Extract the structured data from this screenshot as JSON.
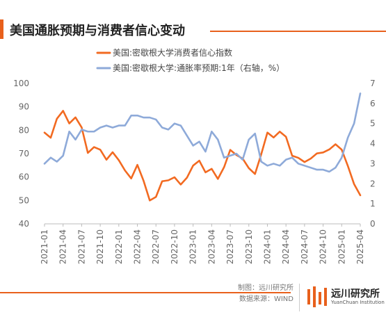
{
  "header": {
    "title": "美国通胀预期与消费者信心变动"
  },
  "footer": {
    "source_line1": "制图：远川研究所",
    "source_line2": "数据来源：WIND",
    "logo_cn": "远川研究所",
    "logo_en": "YuanChuan Institution"
  },
  "colors": {
    "accent": "#e8601c",
    "consumer_sentiment": "#f26a21",
    "inflation_expectation": "#8eaad9"
  },
  "chart_data": {
    "type": "line",
    "title": "美国通胀预期与消费者信心变动",
    "x_tick_labels": [
      "2021-01",
      "2021-04",
      "2021-07",
      "2021-10",
      "2022-01",
      "2022-04",
      "2022-07",
      "2022-10",
      "2023-01",
      "2023-04",
      "2023-07",
      "2023-10",
      "2024-01",
      "2024-04",
      "2024-07",
      "2024-10",
      "2025-01",
      "2025-04"
    ],
    "x": [
      "2021-01",
      "2021-02",
      "2021-03",
      "2021-04",
      "2021-05",
      "2021-06",
      "2021-07",
      "2021-08",
      "2021-09",
      "2021-10",
      "2021-11",
      "2021-12",
      "2022-01",
      "2022-02",
      "2022-03",
      "2022-04",
      "2022-05",
      "2022-06",
      "2022-07",
      "2022-08",
      "2022-09",
      "2022-10",
      "2022-11",
      "2022-12",
      "2023-01",
      "2023-02",
      "2023-03",
      "2023-04",
      "2023-05",
      "2023-06",
      "2023-07",
      "2023-08",
      "2023-09",
      "2023-10",
      "2023-11",
      "2023-12",
      "2024-01",
      "2024-02",
      "2024-03",
      "2024-04",
      "2024-05",
      "2024-06",
      "2024-07",
      "2024-08",
      "2024-09",
      "2024-10",
      "2024-11",
      "2024-12",
      "2025-01",
      "2025-02",
      "2025-03",
      "2025-04"
    ],
    "y_left": {
      "range": [
        40,
        100
      ],
      "ticks": [
        "40",
        "50",
        "60",
        "70",
        "80",
        "90",
        "100"
      ]
    },
    "y_right": {
      "range": [
        0,
        7
      ],
      "ticks": [
        "0",
        "1",
        "2",
        "3",
        "4",
        "5",
        "6",
        "7"
      ]
    },
    "legend_position": "top",
    "grid": false,
    "series": [
      {
        "name": "美国:密歇根大学消费者信心指数",
        "axis": "left",
        "values": [
          79.0,
          76.8,
          84.9,
          88.3,
          82.9,
          85.5,
          81.2,
          70.3,
          72.8,
          71.7,
          67.4,
          70.6,
          67.2,
          62.8,
          59.4,
          65.2,
          58.4,
          50.0,
          51.5,
          58.2,
          58.6,
          59.9,
          56.8,
          59.7,
          64.9,
          67.0,
          62.0,
          63.5,
          59.2,
          64.2,
          71.6,
          69.4,
          67.9,
          63.8,
          61.3,
          69.7,
          79.0,
          76.9,
          79.4,
          77.2,
          69.1,
          68.2,
          66.4,
          67.9,
          70.1,
          70.5,
          71.8,
          74.0,
          71.7,
          64.7,
          57.0,
          52.2
        ]
      },
      {
        "name": "美国:密歇根大学:通胀率预期:1年（右轴，%）",
        "axis": "right",
        "values": [
          3.0,
          3.3,
          3.1,
          3.4,
          4.6,
          4.2,
          4.7,
          4.6,
          4.6,
          4.8,
          4.9,
          4.8,
          4.9,
          4.9,
          5.4,
          5.4,
          5.3,
          5.3,
          5.2,
          4.8,
          4.7,
          5.0,
          4.9,
          4.4,
          3.9,
          4.1,
          3.6,
          4.6,
          4.2,
          3.3,
          3.4,
          3.5,
          3.2,
          4.2,
          4.5,
          3.1,
          2.9,
          3.0,
          2.9,
          3.2,
          3.3,
          3.0,
          2.9,
          2.8,
          2.7,
          2.7,
          2.6,
          2.8,
          3.3,
          4.3,
          5.0,
          6.5
        ]
      }
    ]
  }
}
